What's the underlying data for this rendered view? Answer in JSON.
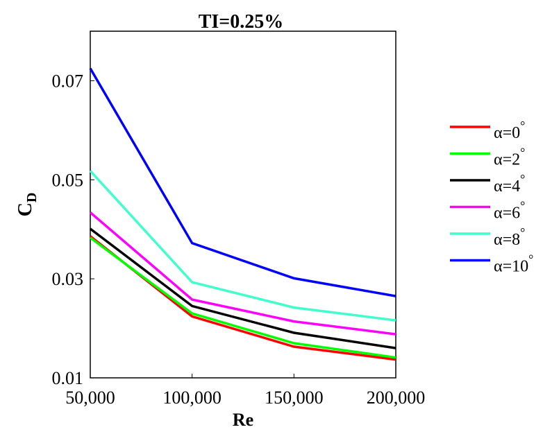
{
  "chart_data": {
    "type": "line",
    "title": "TI=0.25%",
    "xlabel": "Re",
    "ylabel": "C",
    "ylabel_subscript": "D",
    "x": [
      50000,
      100000,
      150000,
      200000
    ],
    "xticks": [
      50000,
      100000,
      150000,
      200000
    ],
    "xtick_labels": [
      "50,000",
      "100,000",
      "150,000",
      "200,000"
    ],
    "yticks": [
      0.01,
      0.03,
      0.05,
      0.07
    ],
    "ytick_labels": [
      "0.01",
      "0.03",
      "0.05",
      "0.07"
    ],
    "xlim": [
      50000,
      200000
    ],
    "ylim": [
      0.01,
      0.08
    ],
    "grid": false,
    "legend_position": "right",
    "series": [
      {
        "name": "α=0°",
        "alpha": "α=0",
        "color": "#ff0000",
        "values": [
          0.0386,
          0.0224,
          0.0163,
          0.0137
        ]
      },
      {
        "name": "α=2°",
        "alpha": "α=2",
        "color": "#00ff00",
        "values": [
          0.0383,
          0.023,
          0.017,
          0.0141
        ]
      },
      {
        "name": "α=4°",
        "alpha": "α=4",
        "color": "#000000",
        "values": [
          0.0401,
          0.0245,
          0.0191,
          0.016
        ]
      },
      {
        "name": "α=6°",
        "alpha": "α=6",
        "color": "#ff00ff",
        "values": [
          0.0434,
          0.0258,
          0.0214,
          0.0188
        ]
      },
      {
        "name": "α=8°",
        "alpha": "α=8",
        "color": "#40ffcc",
        "values": [
          0.0518,
          0.0293,
          0.0242,
          0.0216
        ]
      },
      {
        "name": "α=10°",
        "alpha": "α=10",
        "color": "#0000ff",
        "values": [
          0.0725,
          0.0372,
          0.0301,
          0.0265
        ]
      }
    ]
  }
}
